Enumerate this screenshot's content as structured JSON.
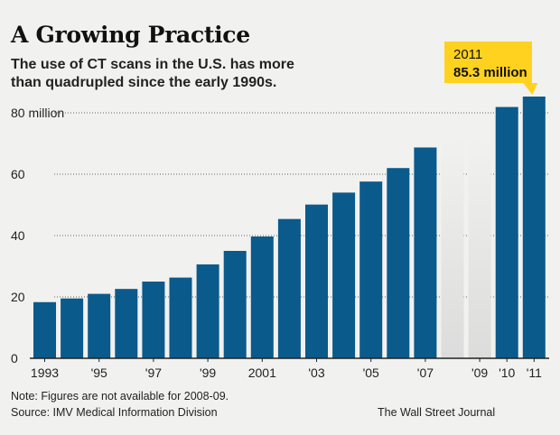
{
  "header": {
    "title": "A Growing Practice",
    "subtitle": "The use of CT scans in the U.S. has more than quadrupled since the early 1990s."
  },
  "footer": {
    "note": "Note: Figures are not available for 2008-09.",
    "source": "Source: IMV Medical Information Division",
    "credit": "The Wall Street Journal"
  },
  "colors": {
    "bar": "#0a5a8c",
    "missing": "#dcdcdc",
    "callout": "#ffd21f",
    "background": "#f1f1ef"
  },
  "chart_data": {
    "type": "bar",
    "title": "A Growing Practice",
    "categories": [
      "1993",
      "1994",
      "1995",
      "1996",
      "1997",
      "1998",
      "1999",
      "2000",
      "2001",
      "2002",
      "2003",
      "2004",
      "2005",
      "2006",
      "2007",
      "2008",
      "2009",
      "2010",
      "2011"
    ],
    "values": [
      18.3,
      19.5,
      21.0,
      22.6,
      25.0,
      26.3,
      30.6,
      35.0,
      39.7,
      45.4,
      50.1,
      54.0,
      57.6,
      62.0,
      68.7,
      null,
      null,
      81.9,
      85.3
    ],
    "tick_labels": [
      "1993",
      "",
      "'95",
      "",
      "'97",
      "",
      "'99",
      "",
      "2001",
      "",
      "'03",
      "",
      "'05",
      "",
      "'07",
      "",
      "'09",
      "'10",
      "'11"
    ],
    "missing_categories": [
      "2008",
      "2009"
    ],
    "ylim": [
      0,
      85.3
    ],
    "yticks": [
      {
        "value": 0,
        "label": "0"
      },
      {
        "value": 20,
        "label": "20"
      },
      {
        "value": 40,
        "label": "40"
      },
      {
        "value": 60,
        "label": "60"
      },
      {
        "value": 80,
        "label": "80 million"
      }
    ],
    "grid": true,
    "callout": {
      "year": "2011",
      "value": "85.3 million"
    }
  }
}
